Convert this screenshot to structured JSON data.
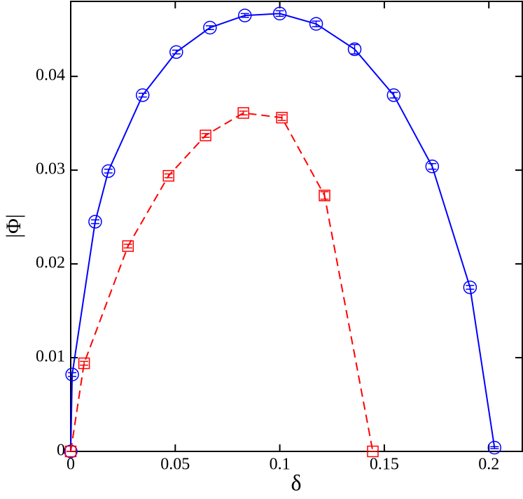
{
  "chart_data": {
    "type": "line",
    "xlabel": "δ",
    "ylabel": "|Φ|",
    "xlim": [
      0,
      0.216
    ],
    "ylim": [
      0,
      0.048
    ],
    "xticks": [
      0,
      0.05,
      0.1,
      0.15,
      0.2
    ],
    "yticks": [
      0,
      0.01,
      0.02,
      0.03,
      0.04
    ],
    "series": [
      {
        "color": "#0000ff",
        "marker": "circle",
        "dashed": false,
        "x": [
          0,
          0.0007,
          0.0117,
          0.018,
          0.0344,
          0.0505,
          0.0666,
          0.0833,
          0.1,
          0.1174,
          0.1358,
          0.1545,
          0.1729,
          0.191,
          0.2027
        ],
        "values": [
          0,
          0.0082,
          0.0245,
          0.0299,
          0.038,
          0.0426,
          0.0452,
          0.0465,
          0.0467,
          0.0456,
          0.0429,
          0.038,
          0.0304,
          0.0175,
          0.0004
        ],
        "errors": [
          0,
          0.0002,
          0.0002,
          0.0002,
          0.0002,
          0.0002,
          0.0002,
          0.0002,
          0.0003,
          0.0003,
          0.0005,
          0.0003,
          0.0003,
          0.0002,
          0.0001
        ]
      },
      {
        "color": "#ff0000",
        "marker": "square",
        "dashed": true,
        "x": [
          0,
          0.0064,
          0.0274,
          0.0468,
          0.0645,
          0.0826,
          0.101,
          0.1214,
          0.1445
        ],
        "values": [
          0,
          0.0094,
          0.0219,
          0.0294,
          0.0337,
          0.0361,
          0.0356,
          0.0273,
          0
        ],
        "errors": [
          0,
          0.0002,
          0.0002,
          0.0002,
          0.0002,
          0.0002,
          0.0003,
          0.0004,
          0
        ]
      }
    ]
  }
}
